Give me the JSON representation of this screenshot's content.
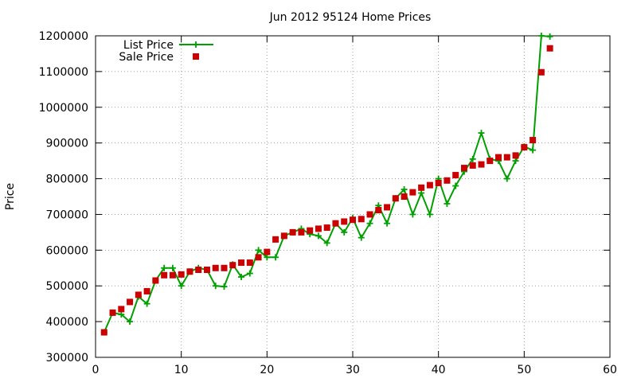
{
  "chart_data": {
    "type": "line",
    "title": "Jun 2012 95124 Home Prices",
    "xlabel": "",
    "ylabel": "Price",
    "xlim": [
      0,
      60
    ],
    "ylim": [
      300000,
      1200000
    ],
    "xticks": [
      "0",
      "10",
      "20",
      "30",
      "40",
      "50",
      "60"
    ],
    "yticks": [
      "300000",
      "400000",
      "500000",
      "600000",
      "700000",
      "800000",
      "900000",
      "1000000",
      "1100000",
      "1200000"
    ],
    "grid": true,
    "legend_position": "top-left",
    "series": [
      {
        "name": "List Price",
        "style": "line-with-plus-markers",
        "color": "#00a000",
        "x": [
          1,
          2,
          3,
          4,
          5,
          6,
          7,
          8,
          9,
          10,
          11,
          12,
          13,
          14,
          15,
          16,
          17,
          18,
          19,
          20,
          21,
          22,
          23,
          24,
          25,
          26,
          27,
          28,
          29,
          30,
          31,
          32,
          33,
          34,
          35,
          36,
          37,
          38,
          39,
          40,
          41,
          42,
          43,
          44,
          45,
          46,
          47,
          48,
          49,
          50,
          51,
          52,
          53
        ],
        "values": [
          370000,
          425000,
          420000,
          400000,
          470000,
          450000,
          515000,
          550000,
          550000,
          500000,
          540000,
          550000,
          545000,
          500000,
          498000,
          560000,
          525000,
          535000,
          600000,
          580000,
          580000,
          640000,
          650000,
          660000,
          645000,
          640000,
          620000,
          675000,
          650000,
          690000,
          635000,
          675000,
          725000,
          675000,
          745000,
          770000,
          700000,
          760000,
          700000,
          800000,
          730000,
          780000,
          820000,
          855000,
          928000,
          855000,
          850000,
          800000,
          850000,
          890000,
          880000,
          1200000,
          1198000
        ]
      },
      {
        "name": "Sale Price",
        "style": "square-markers",
        "color": "#cc0000",
        "x": [
          1,
          2,
          3,
          4,
          5,
          6,
          7,
          8,
          9,
          10,
          11,
          12,
          13,
          14,
          15,
          16,
          17,
          18,
          19,
          20,
          21,
          22,
          23,
          24,
          25,
          26,
          27,
          28,
          29,
          30,
          31,
          32,
          33,
          34,
          35,
          36,
          37,
          38,
          39,
          40,
          41,
          42,
          43,
          44,
          45,
          46,
          47,
          48,
          49,
          50,
          51,
          52,
          53
        ],
        "values": [
          370000,
          425000,
          435000,
          455000,
          475000,
          485000,
          515000,
          530000,
          530000,
          532000,
          540000,
          545000,
          545000,
          550000,
          550000,
          558000,
          565000,
          565000,
          580000,
          595000,
          630000,
          640000,
          650000,
          650000,
          655000,
          660000,
          663000,
          675000,
          680000,
          685000,
          687000,
          700000,
          712000,
          720000,
          745000,
          750000,
          762000,
          775000,
          782000,
          788000,
          795000,
          810000,
          830000,
          837000,
          840000,
          850000,
          860000,
          860000,
          865000,
          888000,
          908000,
          1098000,
          1165000
        ]
      }
    ]
  }
}
